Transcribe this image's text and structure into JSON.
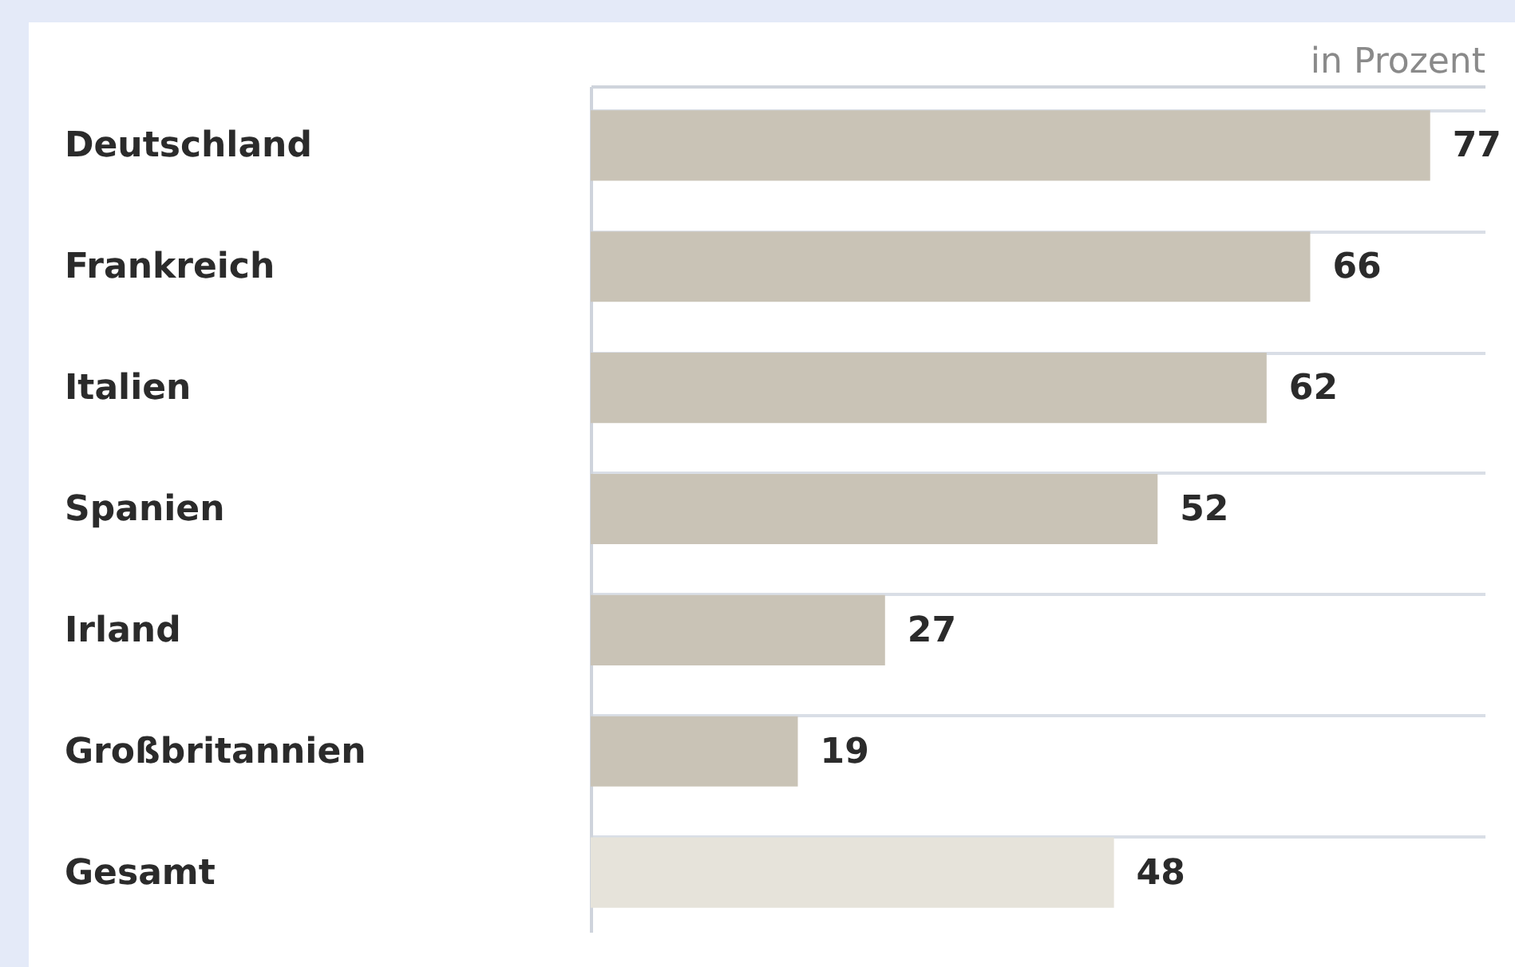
{
  "chart_data": {
    "type": "bar",
    "orientation": "horizontal",
    "xlabel": "in Prozent",
    "categories": [
      "Deutschland",
      "Frankreich",
      "Italien",
      "Spanien",
      "Irland",
      "Großbritannien",
      "Gesamt"
    ],
    "values": [
      77,
      66,
      62,
      52,
      27,
      19,
      48
    ],
    "colors": [
      "#c9c3b6",
      "#c9c3b6",
      "#c9c3b6",
      "#c9c3b6",
      "#c9c3b6",
      "#c9c3b6",
      "#e6e3da"
    ],
    "xlim": [
      0,
      82
    ],
    "data_labels": true,
    "tick_labels": "y",
    "grid": "y"
  }
}
